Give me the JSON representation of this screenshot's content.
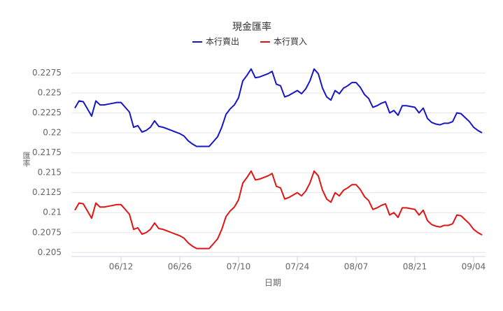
{
  "chart_data": {
    "type": "line",
    "title": "現金匯率",
    "xlabel": "日期",
    "ylabel": "匯率",
    "categories": [
      null,
      null,
      null,
      null,
      null,
      null,
      null,
      null,
      null,
      null,
      null,
      "06/12",
      null,
      null,
      null,
      null,
      null,
      null,
      null,
      null,
      null,
      null,
      null,
      null,
      null,
      "06/26",
      null,
      null,
      null,
      null,
      null,
      null,
      null,
      null,
      null,
      null,
      null,
      null,
      null,
      "07/10",
      null,
      null,
      null,
      null,
      null,
      null,
      null,
      null,
      null,
      null,
      null,
      null,
      null,
      "07/24",
      null,
      null,
      null,
      null,
      null,
      null,
      null,
      null,
      null,
      null,
      null,
      null,
      null,
      "08/07",
      null,
      null,
      null,
      null,
      null,
      null,
      null,
      null,
      null,
      null,
      null,
      null,
      null,
      "08/21",
      null,
      null,
      null,
      null,
      null,
      null,
      null,
      null,
      null,
      null,
      null,
      null,
      null,
      "09/04",
      null,
      null
    ],
    "series": [
      {
        "name": "本行賣出",
        "color": "#1616c8",
        "values": [
          0.2231,
          0.224,
          0.2239,
          0.223,
          0.2221,
          0.224,
          0.2235,
          0.2235,
          0.2236,
          0.2237,
          0.2238,
          0.2238,
          0.2232,
          0.2226,
          0.2207,
          0.2209,
          0.2201,
          0.2203,
          0.2207,
          0.2215,
          0.2208,
          0.2207,
          0.2205,
          0.2203,
          0.2201,
          0.2199,
          0.2196,
          0.219,
          0.2186,
          0.2183,
          0.2183,
          0.2183,
          0.2183,
          0.2189,
          0.2195,
          0.2207,
          0.2223,
          0.223,
          0.2235,
          0.2244,
          0.2265,
          0.2272,
          0.228,
          0.2269,
          0.227,
          0.2272,
          0.2274,
          0.2277,
          0.2261,
          0.2259,
          0.2245,
          0.2247,
          0.225,
          0.2253,
          0.2249,
          0.2255,
          0.2265,
          0.228,
          0.2274,
          0.2256,
          0.2245,
          0.2241,
          0.2253,
          0.2249,
          0.2256,
          0.2259,
          0.2263,
          0.2263,
          0.2257,
          0.2248,
          0.2243,
          0.2232,
          0.2234,
          0.2237,
          0.2239,
          0.2225,
          0.2228,
          0.2222,
          0.2234,
          0.2234,
          0.2233,
          0.2232,
          0.2225,
          0.2231,
          0.2218,
          0.2213,
          0.2211,
          0.221,
          0.2212,
          0.2212,
          0.2214,
          0.2225,
          0.2224,
          0.2219,
          0.2214,
          0.2207,
          0.2203,
          0.22
        ]
      },
      {
        "name": "本行買入",
        "color": "#e01414",
        "values": [
          0.2103,
          0.2112,
          0.2111,
          0.2102,
          0.2093,
          0.2112,
          0.2107,
          0.2107,
          0.2108,
          0.2109,
          0.211,
          0.211,
          0.2104,
          0.2098,
          0.2079,
          0.2081,
          0.2073,
          0.2075,
          0.2079,
          0.2087,
          0.208,
          0.2079,
          0.2077,
          0.2075,
          0.2073,
          0.2071,
          0.2068,
          0.2062,
          0.2058,
          0.2055,
          0.2055,
          0.2055,
          0.2055,
          0.2061,
          0.2067,
          0.2079,
          0.2095,
          0.2102,
          0.2107,
          0.2116,
          0.2137,
          0.2144,
          0.2152,
          0.2141,
          0.2142,
          0.2144,
          0.2146,
          0.2149,
          0.2133,
          0.2131,
          0.2117,
          0.2119,
          0.2122,
          0.2125,
          0.2121,
          0.2127,
          0.2137,
          0.2152,
          0.2146,
          0.2128,
          0.2117,
          0.2113,
          0.2125,
          0.2121,
          0.2128,
          0.2131,
          0.2135,
          0.2135,
          0.2129,
          0.212,
          0.2115,
          0.2104,
          0.2106,
          0.2109,
          0.2111,
          0.2097,
          0.21,
          0.2094,
          0.2106,
          0.2106,
          0.2105,
          0.2104,
          0.2097,
          0.2103,
          0.209,
          0.2085,
          0.2083,
          0.2082,
          0.2084,
          0.2084,
          0.2086,
          0.2097,
          0.2096,
          0.2091,
          0.2086,
          0.2079,
          0.2075,
          0.2072
        ]
      }
    ],
    "ylim": [
      0.2045,
      0.2285
    ],
    "yticks": [
      0.205,
      0.2075,
      0.21,
      0.2125,
      0.215,
      0.2175,
      0.22,
      0.2225,
      0.225,
      0.2275
    ],
    "grid": true
  }
}
